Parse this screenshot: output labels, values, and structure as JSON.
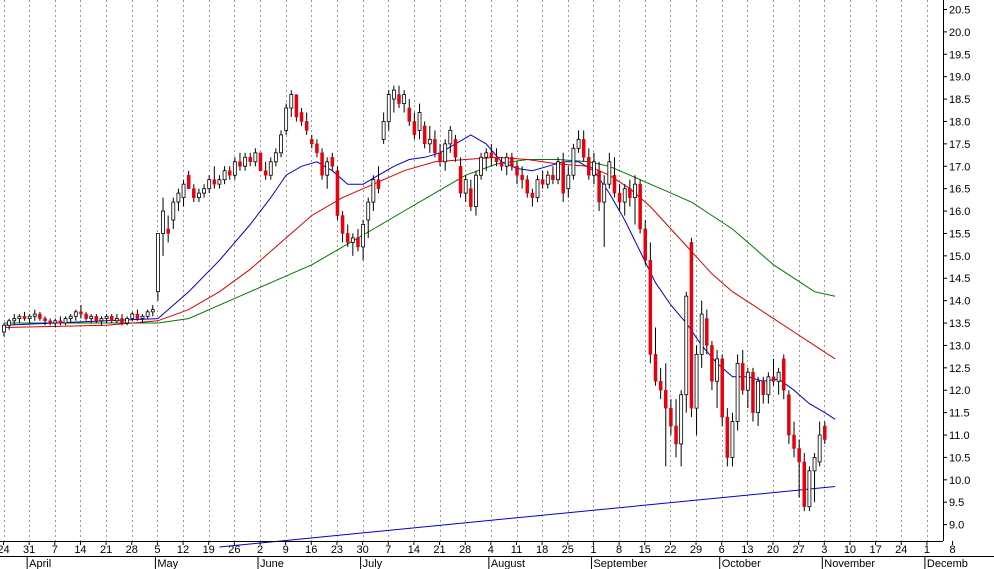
{
  "chart_data": {
    "type": "candlestick",
    "title": "",
    "xlabel": "",
    "ylabel": "",
    "ylim": [
      8.5,
      20.6
    ],
    "y_ticks": [
      "9.0",
      "9.5",
      "10.0",
      "10.5",
      "11.0",
      "11.5",
      "12.0",
      "12.5",
      "13.0",
      "13.5",
      "14.0",
      "14.5",
      "15.0",
      "15.5",
      "16.0",
      "16.5",
      "17.0",
      "17.5",
      "18.0",
      "18.5",
      "19.0",
      "19.5",
      "20.0",
      "20.5"
    ],
    "grid": "vertical-dotted",
    "date_ticks": [
      "24",
      "31",
      "7",
      "14",
      "21",
      "28",
      "5",
      "12",
      "19",
      "26",
      "2",
      "9",
      "16",
      "23",
      "30",
      "7",
      "14",
      "21",
      "28",
      "4",
      "11",
      "18",
      "25",
      "1",
      "8",
      "15",
      "22",
      "29",
      "6",
      "13",
      "20",
      "27",
      "3",
      "10",
      "17",
      "24",
      "1",
      "8"
    ],
    "months": [
      {
        "label": "April",
        "tick": 1
      },
      {
        "label": "May",
        "tick": 6
      },
      {
        "label": "June",
        "tick": 10
      },
      {
        "label": "July",
        "tick": 14
      },
      {
        "label": "August",
        "tick": 19
      },
      {
        "label": "September",
        "tick": 23
      },
      {
        "label": "October",
        "tick": 28
      },
      {
        "label": "November",
        "tick": 32
      },
      {
        "label": "Decemb",
        "tick": 36
      }
    ],
    "colors": {
      "up": "#ffffff",
      "down": "#e8000b",
      "wick": "#000000",
      "ma_short": "#0000cc",
      "ma_mid": "#dd0000",
      "ma_long": "#007700",
      "trendline": "#0000cc",
      "grid": "#999999"
    },
    "candles": [
      [
        13.3,
        13.5,
        13.2,
        13.45
      ],
      [
        13.45,
        13.6,
        13.35,
        13.55
      ],
      [
        13.55,
        13.7,
        13.45,
        13.6
      ],
      [
        13.6,
        13.7,
        13.5,
        13.65
      ],
      [
        13.65,
        13.75,
        13.55,
        13.6
      ],
      [
        13.6,
        13.7,
        13.5,
        13.65
      ],
      [
        13.65,
        13.8,
        13.55,
        13.7
      ],
      [
        13.7,
        13.75,
        13.55,
        13.6
      ],
      [
        13.6,
        13.65,
        13.45,
        13.55
      ],
      [
        13.55,
        13.6,
        13.45,
        13.5
      ],
      [
        13.5,
        13.6,
        13.4,
        13.55
      ],
      [
        13.55,
        13.65,
        13.45,
        13.5
      ],
      [
        13.5,
        13.65,
        13.45,
        13.6
      ],
      [
        13.6,
        13.7,
        13.5,
        13.65
      ],
      [
        13.65,
        13.8,
        13.55,
        13.75
      ],
      [
        13.75,
        13.9,
        13.6,
        13.7
      ],
      [
        13.7,
        13.75,
        13.55,
        13.6
      ],
      [
        13.6,
        13.7,
        13.5,
        13.65
      ],
      [
        13.65,
        13.7,
        13.5,
        13.55
      ],
      [
        13.55,
        13.65,
        13.45,
        13.6
      ],
      [
        13.6,
        13.7,
        13.5,
        13.65
      ],
      [
        13.65,
        13.7,
        13.5,
        13.55
      ],
      [
        13.55,
        13.7,
        13.5,
        13.6
      ],
      [
        13.6,
        13.7,
        13.45,
        13.5
      ],
      [
        13.5,
        13.65,
        13.45,
        13.6
      ],
      [
        13.6,
        13.75,
        13.55,
        13.7
      ],
      [
        13.7,
        13.8,
        13.55,
        13.6
      ],
      [
        13.6,
        13.7,
        13.5,
        13.65
      ],
      [
        13.65,
        13.8,
        13.6,
        13.75
      ],
      [
        13.75,
        13.9,
        13.65,
        13.8
      ],
      [
        14.2,
        15.5,
        14.0,
        15.5
      ],
      [
        15.5,
        16.3,
        15.0,
        16.0
      ],
      [
        15.6,
        15.9,
        15.3,
        15.5
      ],
      [
        15.8,
        16.3,
        15.6,
        16.2
      ],
      [
        16.2,
        16.5,
        16.0,
        16.4
      ],
      [
        16.3,
        16.7,
        16.1,
        16.6
      ],
      [
        16.8,
        16.9,
        16.5,
        16.5
      ],
      [
        16.5,
        16.6,
        16.2,
        16.3
      ],
      [
        16.3,
        16.5,
        16.2,
        16.4
      ],
      [
        16.4,
        16.6,
        16.3,
        16.5
      ],
      [
        16.5,
        16.8,
        16.4,
        16.7
      ],
      [
        16.7,
        17.0,
        16.5,
        16.6
      ],
      [
        16.6,
        16.8,
        16.5,
        16.7
      ],
      [
        16.7,
        17.0,
        16.6,
        16.9
      ],
      [
        16.9,
        17.0,
        16.7,
        16.8
      ],
      [
        16.8,
        17.2,
        16.7,
        17.1
      ],
      [
        17.1,
        17.3,
        16.9,
        17.0
      ],
      [
        17.0,
        17.3,
        16.9,
        17.2
      ],
      [
        17.2,
        17.3,
        17.0,
        17.1
      ],
      [
        17.1,
        17.4,
        17.0,
        17.3
      ],
      [
        17.3,
        17.3,
        16.9,
        16.9
      ],
      [
        16.9,
        17.1,
        16.7,
        16.8
      ],
      [
        16.8,
        17.2,
        16.7,
        17.1
      ],
      [
        17.1,
        17.4,
        17.0,
        17.3
      ],
      [
        17.3,
        17.8,
        17.2,
        17.7
      ],
      [
        17.8,
        18.4,
        17.7,
        18.3
      ],
      [
        18.3,
        18.7,
        18.1,
        18.6
      ],
      [
        18.6,
        18.6,
        18.0,
        18.1
      ],
      [
        18.2,
        18.3,
        17.9,
        18.0
      ],
      [
        18.0,
        18.2,
        17.7,
        17.8
      ],
      [
        17.6,
        17.7,
        17.4,
        17.5
      ],
      [
        17.5,
        17.6,
        17.2,
        17.3
      ],
      [
        17.3,
        17.4,
        16.7,
        16.8
      ],
      [
        16.8,
        17.2,
        16.5,
        17.1
      ],
      [
        17.2,
        17.3,
        16.9,
        17.0
      ],
      [
        16.9,
        17.0,
        15.8,
        15.9
      ],
      [
        15.9,
        16.0,
        15.3,
        15.5
      ],
      [
        15.5,
        15.7,
        15.2,
        15.3
      ],
      [
        15.3,
        15.5,
        15.0,
        15.4
      ],
      [
        15.4,
        15.6,
        15.1,
        15.2
      ],
      [
        15.2,
        15.8,
        14.9,
        15.7
      ],
      [
        15.8,
        16.3,
        15.4,
        16.2
      ],
      [
        16.2,
        16.8,
        16.0,
        16.7
      ],
      [
        16.7,
        17.0,
        16.4,
        16.5
      ],
      [
        17.6,
        18.2,
        17.5,
        18.0
      ],
      [
        18.0,
        18.7,
        17.8,
        18.6
      ],
      [
        18.5,
        18.8,
        18.2,
        18.7
      ],
      [
        18.6,
        18.8,
        18.3,
        18.4
      ],
      [
        18.4,
        18.7,
        18.2,
        18.6
      ],
      [
        18.3,
        18.5,
        17.9,
        18.0
      ],
      [
        18.0,
        18.2,
        17.6,
        17.7
      ],
      [
        17.8,
        18.4,
        17.6,
        18.2
      ],
      [
        17.9,
        18.0,
        17.4,
        17.5
      ],
      [
        17.5,
        17.9,
        17.3,
        17.6
      ],
      [
        17.6,
        17.8,
        17.2,
        17.3
      ],
      [
        17.3,
        17.5,
        17.0,
        17.1
      ],
      [
        17.1,
        17.6,
        16.9,
        17.5
      ],
      [
        17.5,
        17.9,
        17.3,
        17.8
      ],
      [
        17.6,
        17.7,
        17.1,
        17.2
      ],
      [
        17.0,
        17.2,
        16.3,
        16.4
      ],
      [
        16.4,
        16.8,
        16.2,
        16.7
      ],
      [
        16.5,
        16.7,
        16.0,
        16.1
      ],
      [
        16.1,
        16.9,
        15.9,
        16.8
      ],
      [
        16.8,
        17.3,
        16.7,
        17.2
      ],
      [
        17.2,
        17.4,
        16.9,
        17.3
      ],
      [
        17.3,
        17.5,
        17.0,
        17.2
      ],
      [
        17.2,
        17.4,
        17.0,
        17.1
      ],
      [
        17.1,
        17.2,
        16.9,
        17.0
      ],
      [
        17.0,
        17.3,
        16.8,
        17.2
      ],
      [
        17.2,
        17.3,
        16.9,
        17.0
      ],
      [
        17.0,
        17.1,
        16.6,
        16.8
      ],
      [
        16.8,
        17.0,
        16.5,
        16.7
      ],
      [
        16.7,
        16.8,
        16.3,
        16.4
      ],
      [
        16.4,
        16.5,
        16.1,
        16.3
      ],
      [
        16.3,
        16.8,
        16.2,
        16.7
      ],
      [
        16.7,
        16.9,
        16.5,
        16.6
      ],
      [
        16.6,
        16.9,
        16.5,
        16.8
      ],
      [
        16.8,
        17.0,
        16.6,
        16.7
      ],
      [
        16.7,
        17.2,
        16.6,
        17.1
      ],
      [
        17.1,
        17.3,
        16.2,
        16.4
      ],
      [
        16.5,
        17.0,
        16.3,
        16.8
      ],
      [
        16.8,
        17.5,
        16.7,
        17.4
      ],
      [
        17.4,
        17.8,
        17.3,
        17.6
      ],
      [
        17.6,
        17.8,
        17.1,
        17.2
      ],
      [
        17.2,
        17.4,
        16.7,
        16.8
      ],
      [
        16.8,
        17.3,
        16.6,
        17.1
      ],
      [
        16.9,
        17.1,
        16.0,
        16.2
      ],
      [
        16.2,
        16.8,
        15.2,
        16.6
      ],
      [
        16.6,
        17.3,
        16.5,
        17.1
      ],
      [
        16.8,
        17.2,
        16.3,
        16.4
      ],
      [
        16.4,
        16.6,
        16.0,
        16.2
      ],
      [
        16.2,
        16.6,
        15.9,
        16.5
      ],
      [
        16.5,
        16.7,
        16.1,
        16.3
      ],
      [
        16.3,
        16.8,
        15.7,
        16.6
      ],
      [
        16.6,
        16.7,
        15.5,
        15.6
      ],
      [
        15.6,
        15.8,
        14.8,
        14.9
      ],
      [
        14.9,
        15.3,
        12.6,
        12.8
      ],
      [
        12.8,
        13.4,
        12.1,
        12.2
      ],
      [
        12.2,
        12.5,
        11.8,
        12.0
      ],
      [
        12.0,
        12.6,
        10.3,
        11.6
      ],
      [
        11.6,
        11.8,
        11.0,
        11.2
      ],
      [
        11.2,
        11.8,
        10.5,
        10.8
      ],
      [
        10.8,
        12.0,
        10.3,
        11.9
      ],
      [
        11.9,
        14.2,
        11.5,
        14.1
      ],
      [
        15.3,
        15.4,
        11.4,
        11.6
      ],
      [
        11.6,
        13.0,
        11.0,
        12.8
      ],
      [
        12.8,
        14.0,
        12.5,
        13.7
      ],
      [
        13.6,
        13.8,
        12.8,
        13.0
      ],
      [
        13.0,
        13.1,
        12.0,
        12.2
      ],
      [
        12.2,
        12.9,
        11.6,
        12.7
      ],
      [
        12.7,
        12.8,
        11.2,
        11.4
      ],
      [
        11.4,
        11.6,
        10.3,
        10.5
      ],
      [
        10.5,
        11.5,
        10.3,
        11.3
      ],
      [
        11.3,
        12.8,
        11.1,
        12.6
      ],
      [
        12.6,
        12.9,
        11.9,
        12.0
      ],
      [
        12.0,
        12.5,
        11.6,
        12.4
      ],
      [
        12.4,
        12.5,
        11.3,
        11.5
      ],
      [
        11.5,
        12.3,
        11.2,
        12.2
      ],
      [
        12.2,
        12.3,
        11.7,
        11.9
      ],
      [
        11.9,
        12.4,
        11.7,
        12.3
      ],
      [
        12.3,
        12.7,
        12.1,
        12.2
      ],
      [
        12.2,
        12.5,
        11.9,
        12.4
      ],
      [
        12.7,
        12.8,
        11.8,
        12.0
      ],
      [
        11.9,
        12.0,
        10.8,
        11.0
      ],
      [
        11.0,
        11.3,
        10.5,
        10.7
      ],
      [
        10.7,
        10.9,
        9.6,
        10.4
      ],
      [
        10.4,
        10.6,
        9.3,
        9.4
      ],
      [
        9.4,
        10.3,
        9.3,
        10.2
      ],
      [
        10.2,
        10.6,
        9.5,
        10.5
      ],
      [
        10.4,
        11.3,
        10.3,
        11.0
      ],
      [
        11.2,
        11.3,
        10.8,
        10.9
      ]
    ],
    "ma_short": [
      [
        0,
        13.45
      ],
      [
        20,
        13.55
      ],
      [
        30,
        13.6
      ],
      [
        36,
        14.2
      ],
      [
        42,
        14.9
      ],
      [
        48,
        15.7
      ],
      [
        52,
        16.3
      ],
      [
        55,
        16.8
      ],
      [
        58,
        17.0
      ],
      [
        61,
        17.1
      ],
      [
        64,
        16.9
      ],
      [
        67,
        16.6
      ],
      [
        70,
        16.6
      ],
      [
        73,
        16.8
      ],
      [
        76,
        17.0
      ],
      [
        79,
        17.15
      ],
      [
        82,
        17.2
      ],
      [
        85,
        17.3
      ],
      [
        88,
        17.5
      ],
      [
        91,
        17.7
      ],
      [
        94,
        17.5
      ],
      [
        97,
        17.1
      ],
      [
        100,
        16.95
      ],
      [
        103,
        16.9
      ],
      [
        106,
        17.0
      ],
      [
        109,
        17.1
      ],
      [
        112,
        17.1
      ],
      [
        115,
        16.9
      ],
      [
        118,
        16.4
      ],
      [
        121,
        15.8
      ],
      [
        124,
        15.1
      ],
      [
        127,
        14.4
      ],
      [
        130,
        13.9
      ],
      [
        133,
        13.5
      ],
      [
        136,
        13.0
      ],
      [
        139,
        12.6
      ],
      [
        142,
        12.3
      ],
      [
        145,
        12.3
      ],
      [
        148,
        12.2
      ],
      [
        151,
        12.25
      ],
      [
        154,
        12.0
      ],
      [
        157,
        11.7
      ],
      [
        160,
        11.5
      ],
      [
        162,
        11.35
      ]
    ],
    "ma_mid": [
      [
        0,
        13.4
      ],
      [
        20,
        13.45
      ],
      [
        30,
        13.55
      ],
      [
        36,
        13.8
      ],
      [
        42,
        14.2
      ],
      [
        48,
        14.7
      ],
      [
        54,
        15.3
      ],
      [
        60,
        15.9
      ],
      [
        66,
        16.3
      ],
      [
        72,
        16.6
      ],
      [
        78,
        16.9
      ],
      [
        84,
        17.1
      ],
      [
        90,
        17.15
      ],
      [
        96,
        17.2
      ],
      [
        102,
        17.15
      ],
      [
        108,
        17.05
      ],
      [
        114,
        17.0
      ],
      [
        118,
        16.8
      ],
      [
        122,
        16.5
      ],
      [
        126,
        16.1
      ],
      [
        130,
        15.6
      ],
      [
        134,
        15.1
      ],
      [
        138,
        14.6
      ],
      [
        142,
        14.2
      ],
      [
        146,
        13.9
      ],
      [
        150,
        13.6
      ],
      [
        154,
        13.3
      ],
      [
        158,
        13.0
      ],
      [
        162,
        12.7
      ]
    ],
    "ma_long": [
      [
        0,
        13.5
      ],
      [
        20,
        13.5
      ],
      [
        30,
        13.5
      ],
      [
        36,
        13.6
      ],
      [
        42,
        13.9
      ],
      [
        48,
        14.2
      ],
      [
        54,
        14.5
      ],
      [
        60,
        14.8
      ],
      [
        66,
        15.2
      ],
      [
        72,
        15.6
      ],
      [
        78,
        16.0
      ],
      [
        84,
        16.4
      ],
      [
        90,
        16.8
      ],
      [
        96,
        17.05
      ],
      [
        102,
        17.15
      ],
      [
        108,
        17.15
      ],
      [
        114,
        17.1
      ],
      [
        118,
        17.0
      ],
      [
        122,
        16.8
      ],
      [
        126,
        16.6
      ],
      [
        130,
        16.4
      ],
      [
        134,
        16.2
      ],
      [
        138,
        15.9
      ],
      [
        142,
        15.6
      ],
      [
        146,
        15.2
      ],
      [
        150,
        14.8
      ],
      [
        154,
        14.5
      ],
      [
        158,
        14.2
      ],
      [
        162,
        14.1
      ]
    ],
    "trendline": [
      [
        42,
        8.5
      ],
      [
        162,
        9.85
      ]
    ]
  }
}
